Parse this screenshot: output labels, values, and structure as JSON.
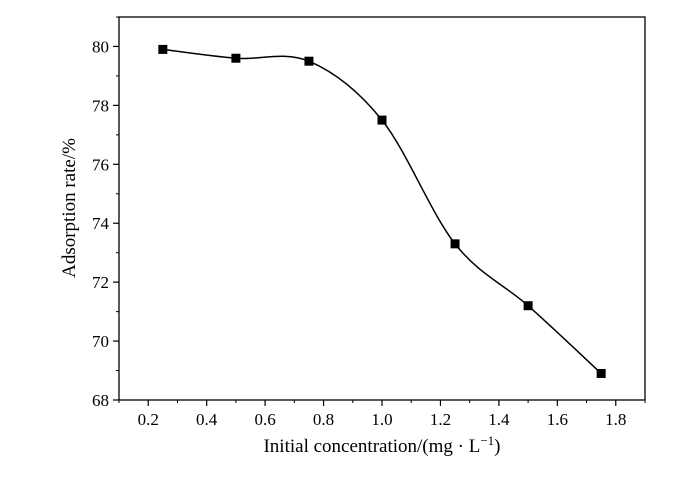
{
  "chart_data": {
    "type": "scatter",
    "xlabel": "Initial concentration/(mg · L",
    "xlabel_exponent": "−1",
    "xlabel_close": ")",
    "ylabel": "Adsorption rate/%",
    "xlim": [
      0.1,
      1.9
    ],
    "ylim": [
      68,
      81
    ],
    "x_ticks": [
      0.2,
      0.4,
      0.6,
      0.8,
      1.0,
      1.2,
      1.4,
      1.6,
      1.8
    ],
    "x_tick_labels": [
      "0.2",
      "0.4",
      "0.6",
      "0.8",
      "1.0",
      "1.2",
      "1.4",
      "1.6",
      "1.8"
    ],
    "y_ticks": [
      68,
      70,
      72,
      74,
      76,
      78,
      80
    ],
    "y_tick_labels": [
      "68",
      "70",
      "72",
      "74",
      "76",
      "78",
      "80"
    ],
    "grid": false,
    "legend": "none",
    "smooth_curve": true,
    "marker": "square",
    "series": [
      {
        "x": [
          0.25,
          0.5,
          0.75,
          1.0,
          1.25,
          1.5,
          1.75
        ],
        "y": [
          79.9,
          79.6,
          79.5,
          77.5,
          73.3,
          71.2,
          68.9
        ]
      }
    ],
    "colors": {
      "line": "#000000",
      "marker": "#000000",
      "axis": "#000000"
    }
  }
}
